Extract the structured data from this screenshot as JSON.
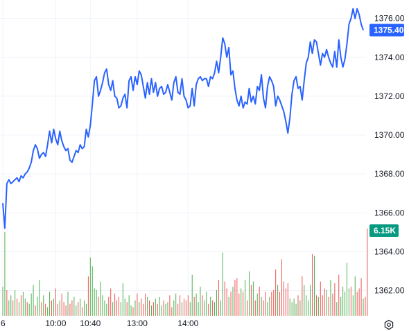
{
  "chart_data": {
    "type": "line",
    "price_series": {
      "color": "#2962ff",
      "last_label": "1375.40",
      "x_index": [
        0,
        1,
        2,
        3,
        4,
        5,
        6,
        7,
        8,
        9,
        10,
        11,
        12,
        13,
        14,
        15,
        16,
        17,
        18,
        19,
        20,
        21,
        22,
        23,
        24,
        25,
        26,
        27,
        28,
        29,
        30,
        31,
        32,
        33,
        34,
        35,
        36,
        37,
        38,
        39,
        40,
        41,
        42,
        43,
        44,
        45,
        46,
        47,
        48,
        49,
        50,
        51,
        52,
        53,
        54,
        55,
        56,
        57,
        58,
        59,
        60,
        61,
        62,
        63,
        64,
        65,
        66,
        67,
        68,
        69,
        70,
        71,
        72,
        73,
        74,
        75,
        76,
        77,
        78,
        79,
        80,
        81,
        82,
        83,
        84,
        85,
        86,
        87,
        88,
        89,
        90,
        91,
        92,
        93,
        94,
        95,
        96,
        97,
        98,
        99,
        100,
        101,
        102,
        103,
        104,
        105,
        106,
        107,
        108,
        109,
        110,
        111,
        112,
        113,
        114,
        115,
        116,
        117,
        118,
        119,
        120,
        121,
        122,
        123,
        124,
        125,
        126,
        127,
        128,
        129,
        130,
        131,
        132,
        133,
        134,
        135,
        136,
        137,
        138,
        139,
        140,
        141,
        142,
        143,
        144,
        145,
        146,
        147,
        148,
        149,
        150,
        151,
        152,
        153,
        154,
        155,
        156,
        157,
        158,
        159,
        160,
        161,
        162,
        163,
        164,
        165,
        166,
        167,
        168,
        169,
        170,
        171,
        172,
        173,
        174,
        175,
        176,
        177
      ],
      "values": [
        1366.5,
        1365.2,
        1367.5,
        1367.7,
        1367.5,
        1367.6,
        1367.7,
        1367.8,
        1367.6,
        1367.9,
        1367.8,
        1368.0,
        1368.1,
        1368.3,
        1368.6,
        1369.2,
        1369.5,
        1369.3,
        1368.8,
        1369.0,
        1369.1,
        1368.9,
        1369.5,
        1370.2,
        1369.6,
        1370.3,
        1369.8,
        1369.5,
        1370.2,
        1369.7,
        1369.4,
        1369.2,
        1369.3,
        1368.7,
        1368.6,
        1368.9,
        1369.2,
        1369.1,
        1369.5,
        1369.3,
        1369.4,
        1370.3,
        1369.9,
        1370.5,
        1371.6,
        1372.8,
        1373.0,
        1372.0,
        1372.3,
        1372.7,
        1373.2,
        1373.4,
        1372.6,
        1372.3,
        1372.8,
        1372.0,
        1371.9,
        1371.4,
        1371.5,
        1371.9,
        1372.1,
        1371.4,
        1372.8,
        1373.0,
        1372.3,
        1373.0,
        1372.6,
        1373.3,
        1373.1,
        1372.5,
        1371.9,
        1372.7,
        1372.1,
        1372.9,
        1372.2,
        1372.7,
        1372.0,
        1372.4,
        1372.5,
        1372.1,
        1372.2,
        1372.6,
        1372.2,
        1371.8,
        1372.7,
        1373.0,
        1372.2,
        1372.1,
        1372.9,
        1372.0,
        1371.8,
        1371.4,
        1371.5,
        1372.4,
        1371.5,
        1372.6,
        1372.9,
        1373.0,
        1372.8,
        1372.9,
        1372.9,
        1372.5,
        1373.0,
        1372.9,
        1373.2,
        1373.8,
        1373.2,
        1374.0,
        1375.0,
        1374.7,
        1374.0,
        1374.5,
        1373.1,
        1373.3,
        1372.4,
        1371.8,
        1371.5,
        1372.0,
        1371.4,
        1371.7,
        1371.6,
        1372.4,
        1371.7,
        1372.0,
        1371.6,
        1372.5,
        1372.3,
        1373.1,
        1371.9,
        1371.4,
        1372.5,
        1373.0,
        1372.8,
        1372.5,
        1371.5,
        1372.0,
        1371.8,
        1371.5,
        1371.2,
        1370.7,
        1370.1,
        1370.9,
        1372.1,
        1372.8,
        1373.0,
        1372.4,
        1372.5,
        1371.8,
        1372.8,
        1373.7,
        1374.0,
        1374.8,
        1374.2,
        1374.9,
        1374.8,
        1374.2,
        1373.6,
        1374.2,
        1374.0,
        1374.4,
        1374.0,
        1373.7,
        1373.5,
        1374.3,
        1373.5,
        1374.9,
        1374.0,
        1373.5,
        1373.9,
        1374.7,
        1375.7,
        1376.0,
        1376.5,
        1376.0,
        1376.5,
        1376.2,
        1375.7,
        1375.4
      ],
      "ylim": [
        1360.7,
        1376.95
      ],
      "y_ticks": [
        1362,
        1364,
        1366,
        1368,
        1370,
        1372,
        1374,
        1376
      ],
      "y_tick_labels": [
        "1362.00",
        "1364.00",
        "1366.00",
        "1368.00",
        "1370.00",
        "1372.00",
        "1374.00",
        "1376.00"
      ]
    },
    "volume_series": {
      "last_label": "6.15K",
      "badge_color": "#089981",
      "up_color": "#4caf50",
      "down_color": "#ef5350",
      "values": [
        1.7,
        4.9,
        1.5,
        0.9,
        1.2,
        0.9,
        1.5,
        1.0,
        0.8,
        1.2,
        1.4,
        1.0,
        0.8,
        0.7,
        1.3,
        1.8,
        0.6,
        1.1,
        2.1,
        0.8,
        1.2,
        0.7,
        0.5,
        1.4,
        0.9,
        1.0,
        1.6,
        0.7,
        0.9,
        1.3,
        0.8,
        0.6,
        1.4,
        0.7,
        0.9,
        1.1,
        0.6,
        0.8,
        1.0,
        0.5,
        0.9,
        0.7,
        2.3,
        3.4,
        2.9,
        1.6,
        1.5,
        1.1,
        2.0,
        1.2,
        0.9,
        0.7,
        1.1,
        1.6,
        0.8,
        1.3,
        0.9,
        1.1,
        0.8,
        1.9,
        1.0,
        0.8,
        1.2,
        0.6,
        0.5,
        0.9,
        1.3,
        0.8,
        1.0,
        0.7,
        1.3,
        1.1,
        0.9,
        0.6,
        0.8,
        1.0,
        0.7,
        1.1,
        0.6,
        0.9,
        0.7,
        0.8,
        1.2,
        0.5,
        0.9,
        1.3,
        0.7,
        1.2,
        0.8,
        1.0,
        0.9,
        1.2,
        0.8,
        2.4,
        1.1,
        1.3,
        0.8,
        1.7,
        1.2,
        0.9,
        1.4,
        0.7,
        1.1,
        0.9,
        0.8,
        1.5,
        2.1,
        0.9,
        3.7,
        2.0,
        1.6,
        1.1,
        1.4,
        1.7,
        2.1,
        2.2,
        1.3,
        1.6,
        1.4,
        2.1,
        0.9,
        2.6,
        1.8,
        2.0,
        0.9,
        1.3,
        1.7,
        1.1,
        0.9,
        1.4,
        0.8,
        1.1,
        1.4,
        1.5,
        2.7,
        1.8,
        1.4,
        3.3,
        2.0,
        1.6,
        1.9,
        1.0,
        0.8,
        1.0,
        0.7,
        1.2,
        0.9,
        2.3,
        1.8,
        1.2,
        0.9,
        1.8,
        3.6,
        3.5,
        1.2,
        1.1,
        2.0,
        1.2,
        1.6,
        1.5,
        1.1,
        2.1,
        1.3,
        1.9,
        0.8,
        2.4,
        1.1,
        1.7,
        1.4,
        3.1,
        1.6,
        1.7,
        1.2,
        2.3,
        1.4,
        1.6,
        2.2,
        1.0,
        1.1,
        5.1
      ],
      "direction": [
        "u",
        "u",
        "d",
        "u",
        "u",
        "d",
        "u",
        "d",
        "u",
        "d",
        "u",
        "u",
        "d",
        "u",
        "u",
        "u",
        "d",
        "u",
        "u",
        "d",
        "u",
        "d",
        "u",
        "u",
        "d",
        "u",
        "d",
        "d",
        "u",
        "d",
        "d",
        "d",
        "u",
        "d",
        "d",
        "u",
        "u",
        "d",
        "u",
        "d",
        "u",
        "u",
        "d",
        "u",
        "u",
        "u",
        "u",
        "d",
        "u",
        "u",
        "u",
        "u",
        "d",
        "d",
        "u",
        "d",
        "d",
        "d",
        "u",
        "u",
        "u",
        "d",
        "u",
        "u",
        "d",
        "u",
        "d",
        "u",
        "d",
        "d",
        "d",
        "u",
        "d",
        "u",
        "d",
        "u",
        "d",
        "u",
        "u",
        "d",
        "u",
        "u",
        "d",
        "d",
        "u",
        "u",
        "d",
        "d",
        "u",
        "d",
        "d",
        "d",
        "u",
        "u",
        "d",
        "u",
        "u",
        "u",
        "d",
        "u",
        "u",
        "d",
        "u",
        "d",
        "u",
        "u",
        "d",
        "u",
        "u",
        "d",
        "d",
        "u",
        "d",
        "u",
        "d",
        "d",
        "d",
        "u",
        "d",
        "u",
        "d",
        "u",
        "d",
        "u",
        "d",
        "u",
        "d",
        "u",
        "d",
        "d",
        "u",
        "u",
        "d",
        "d",
        "d",
        "u",
        "d",
        "d",
        "d",
        "d",
        "d",
        "u",
        "u",
        "u",
        "u",
        "d",
        "u",
        "d",
        "u",
        "u",
        "u",
        "u",
        "d",
        "u",
        "d",
        "u",
        "d",
        "d",
        "d",
        "u",
        "d",
        "u",
        "d",
        "d",
        "u",
        "d",
        "u",
        "u",
        "u",
        "u",
        "u",
        "d",
        "u",
        "u",
        "d",
        "d",
        "d",
        "u"
      ]
    },
    "x_tick_labels": [
      "6",
      "10:00",
      "10:40",
      "13:00",
      "14:00"
    ],
    "x_tick_index": [
      0,
      26,
      43,
      66,
      91
    ]
  },
  "ui": {
    "settings_icon": "gear-icon"
  }
}
